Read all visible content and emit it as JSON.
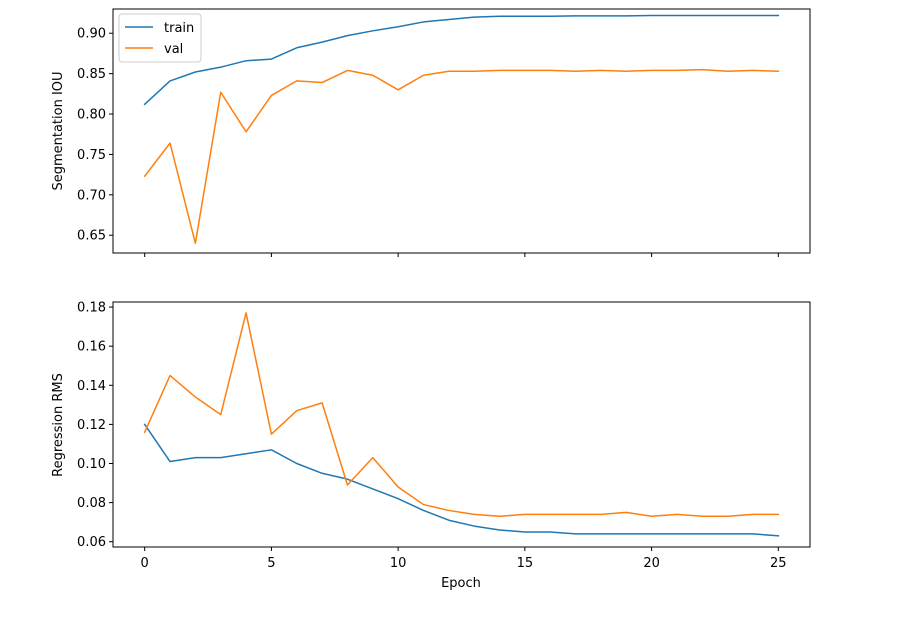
{
  "chart_data": [
    {
      "type": "line",
      "xlabel": "",
      "ylabel": "Segmentation IOU",
      "xlim": [
        -1.25,
        26.25
      ],
      "ylim": [
        0.628,
        0.93
      ],
      "xticks": [
        0,
        5,
        10,
        15,
        20,
        25
      ],
      "xtick_labels_visible": false,
      "yticks": [
        0.65,
        0.7,
        0.75,
        0.8,
        0.85,
        0.9
      ],
      "ytick_labels": [
        "0.65",
        "0.70",
        "0.75",
        "0.80",
        "0.85",
        "0.90"
      ],
      "grid": false,
      "legend": "top-left",
      "x": [
        0,
        1,
        2,
        3,
        4,
        5,
        6,
        7,
        8,
        9,
        10,
        11,
        12,
        13,
        14,
        15,
        16,
        17,
        18,
        19,
        20,
        21,
        22,
        23,
        24,
        25
      ],
      "series": [
        {
          "name": "train",
          "color": "#1f77b4",
          "values": [
            0.812,
            0.841,
            0.852,
            0.858,
            0.866,
            0.868,
            0.882,
            0.889,
            0.897,
            0.903,
            0.908,
            0.914,
            0.917,
            0.92,
            0.921,
            0.921,
            0.921,
            0.9215,
            0.9215,
            0.9215,
            0.922,
            0.922,
            0.922,
            0.922,
            0.922,
            0.922
          ]
        },
        {
          "name": "val",
          "color": "#ff7f0e",
          "values": [
            0.723,
            0.764,
            0.64,
            0.827,
            0.778,
            0.823,
            0.841,
            0.839,
            0.854,
            0.848,
            0.83,
            0.848,
            0.853,
            0.853,
            0.854,
            0.854,
            0.854,
            0.853,
            0.854,
            0.853,
            0.854,
            0.854,
            0.855,
            0.853,
            0.854,
            0.853
          ]
        }
      ]
    },
    {
      "type": "line",
      "xlabel": "Epoch",
      "ylabel": "Regression RMS",
      "xlim": [
        -1.25,
        26.25
      ],
      "ylim": [
        0.0573,
        0.1826
      ],
      "xticks": [
        0,
        5,
        10,
        15,
        20,
        25
      ],
      "xtick_labels": [
        "0",
        "5",
        "10",
        "15",
        "20",
        "25"
      ],
      "yticks": [
        0.06,
        0.08,
        0.1,
        0.12,
        0.14,
        0.16,
        0.18
      ],
      "ytick_labels": [
        "0.06",
        "0.08",
        "0.10",
        "0.12",
        "0.14",
        "0.16",
        "0.18"
      ],
      "grid": false,
      "x": [
        0,
        1,
        2,
        3,
        4,
        5,
        6,
        7,
        8,
        9,
        10,
        11,
        12,
        13,
        14,
        15,
        16,
        17,
        18,
        19,
        20,
        21,
        22,
        23,
        24,
        25
      ],
      "series": [
        {
          "name": "train",
          "color": "#1f77b4",
          "values": [
            0.12,
            0.101,
            0.103,
            0.103,
            0.105,
            0.107,
            0.1,
            0.095,
            0.092,
            0.087,
            0.082,
            0.076,
            0.071,
            0.068,
            0.066,
            0.065,
            0.065,
            0.064,
            0.064,
            0.064,
            0.064,
            0.064,
            0.064,
            0.064,
            0.064,
            0.063
          ]
        },
        {
          "name": "val",
          "color": "#ff7f0e",
          "values": [
            0.116,
            0.145,
            0.134,
            0.125,
            0.177,
            0.115,
            0.127,
            0.131,
            0.089,
            0.103,
            0.088,
            0.079,
            0.076,
            0.074,
            0.073,
            0.074,
            0.074,
            0.074,
            0.074,
            0.075,
            0.073,
            0.074,
            0.073,
            0.073,
            0.074,
            0.074
          ]
        }
      ]
    }
  ]
}
